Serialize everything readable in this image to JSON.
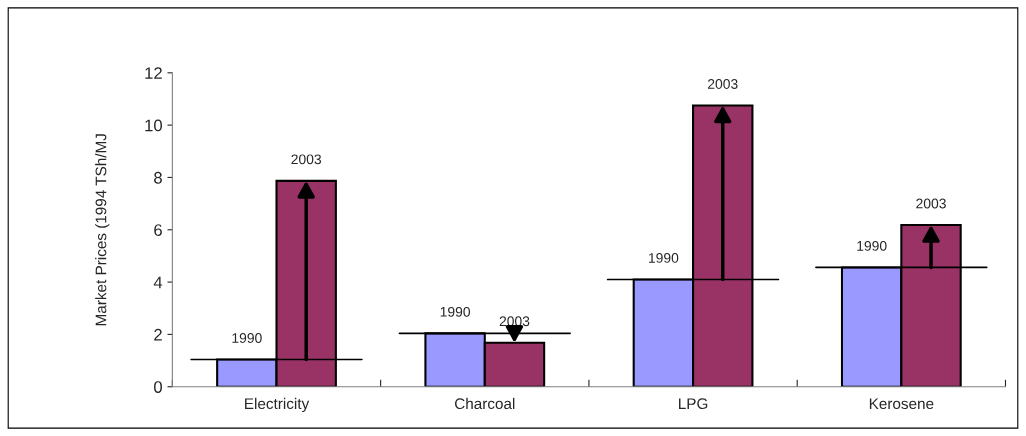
{
  "chart_data": {
    "type": "bar",
    "ylabel": "Market Prices (1994 TSh/MJ",
    "categories": [
      "Electricity",
      "Charcoal",
      "LPG",
      "Kerosene"
    ],
    "series": [
      {
        "name": "1990",
        "color": "#9999ff",
        "values": [
          1.04,
          2.04,
          4.1,
          4.56
        ]
      },
      {
        "name": "2003",
        "color": "#993366",
        "values": [
          7.87,
          1.68,
          10.75,
          6.18
        ]
      }
    ],
    "ylim": [
      0,
      12
    ],
    "yticks": [
      0,
      2,
      4,
      6,
      8,
      10,
      12
    ],
    "grid": false,
    "legend": false
  }
}
